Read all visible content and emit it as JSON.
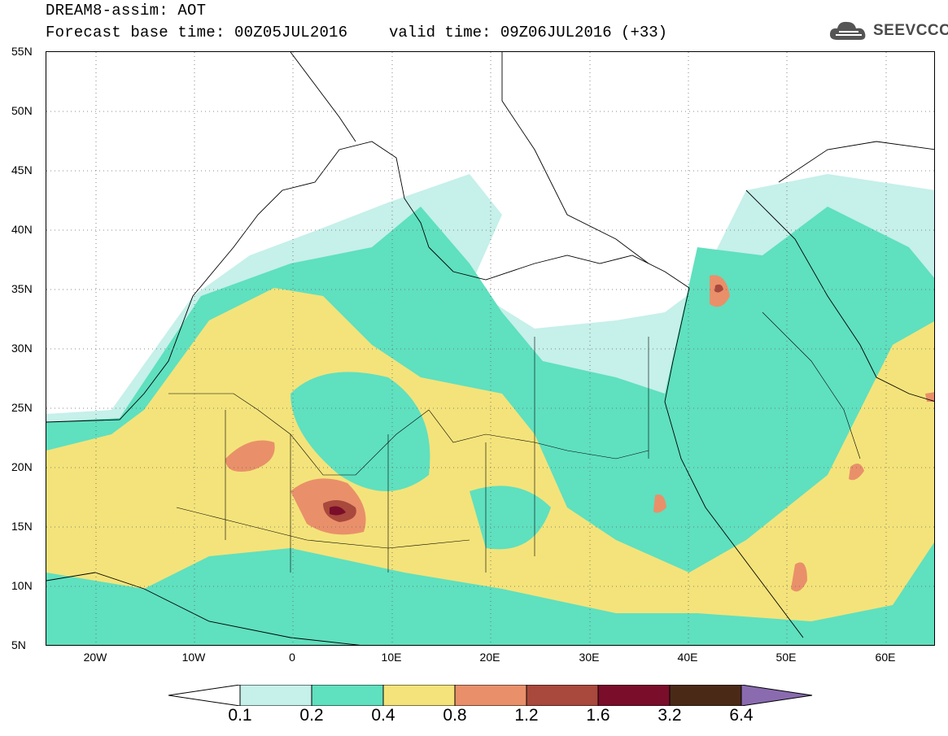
{
  "header": {
    "line1": "DREAM8-assim: AOT",
    "line2": "Forecast base time: 00Z05JUL2016",
    "valid": "valid time: 09Z06JUL2016 (+33)",
    "logo_text": "SEEVCCC"
  },
  "map": {
    "variable": "AOT",
    "lon_range": [
      -25,
      65
    ],
    "lat_range": [
      5,
      55
    ],
    "lat_ticks": [
      "55N",
      "50N",
      "45N",
      "40N",
      "35N",
      "30N",
      "25N",
      "20N",
      "15N",
      "10N",
      "5N"
    ],
    "lon_ticks": [
      "20W",
      "10W",
      "0",
      "10E",
      "20E",
      "30E",
      "40E",
      "50E",
      "60E"
    ],
    "grid": "dotted"
  },
  "colorbar": {
    "levels": [
      "0.1",
      "0.2",
      "0.4",
      "0.8",
      "1.2",
      "1.6",
      "3.2",
      "6.4"
    ],
    "colors": [
      "#c6f0ea",
      "#5fe0bf",
      "#f4e37a",
      "#e9906a",
      "#a9483c",
      "#7a0d2a",
      "#4a2a17",
      "#8a6bb0"
    ]
  }
}
